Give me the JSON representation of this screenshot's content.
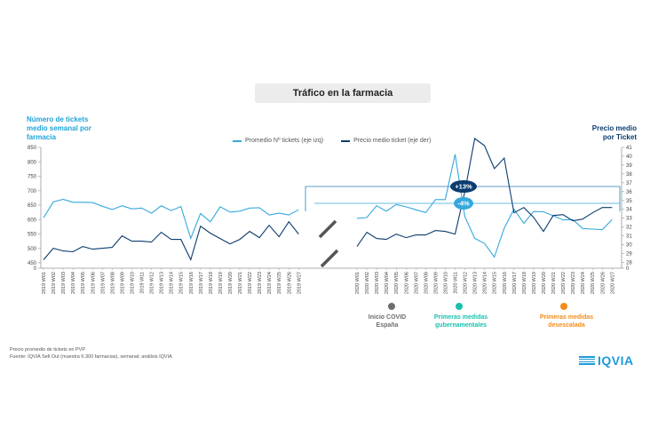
{
  "title": "Tráfico en la farmacia",
  "y_left_title": "Número de tickets medio semanal por farmacia",
  "y_right_title": "Precio medio por Ticket",
  "legend": [
    {
      "label": "Promedio Nº tickets (eje izq)",
      "color": "#35a8dc"
    },
    {
      "label": "Precio medio ticket (eje der)",
      "color": "#0b3c6f"
    }
  ],
  "colors": {
    "tickets": "#35a8dc",
    "price": "#0b3c6f",
    "covid": "#6d6d6d",
    "gov": "#19bfae",
    "descalada": "#f28c1b"
  },
  "events": [
    {
      "label": "Inicio COVID España",
      "color": "#6d6d6d"
    },
    {
      "label": "Primeras medidas gubernamentales",
      "color": "#19bfae"
    },
    {
      "label": "Primeras medidas desescalada",
      "color": "#f28c1b"
    }
  ],
  "footer": [
    "Precio promedio de tickets en PVP",
    "Fuente: IQVIA Sell Out (muestra 6.300 farmacias), semanal; análisis IQVIA"
  ],
  "logo": "IQVIA",
  "chart_data": {
    "type": "line",
    "x": [
      "2019 W01",
      "2019 W02",
      "2019 W03",
      "2019 W04",
      "2019 W05",
      "2019 W06",
      "2019 W07",
      "2019 W08",
      "2019 W09",
      "2019 W10",
      "2019 W11",
      "2019 W12",
      "2019 W13",
      "2019 W14",
      "2019 W15",
      "2019 W16",
      "2019 W17",
      "2019 W18",
      "2019 W19",
      "2019 W20",
      "2019 W21",
      "2019 W22",
      "2019 W23",
      "2019 W24",
      "2019 W25",
      "2019 W26",
      "2019 W27",
      "2020 W01",
      "2020 W02",
      "2020 W03",
      "2020 W04",
      "2020 W05",
      "2020 W06",
      "2020 W07",
      "2020 W08",
      "2020 W09",
      "2020 W10",
      "2020 W11",
      "2020 W12",
      "2020 W13",
      "2020 W14",
      "2020 W15",
      "2020 W16",
      "2020 W17",
      "2020 W18",
      "2020 W19",
      "2020 W20",
      "2020 W21",
      "2020 W22",
      "2020 W23",
      "2020 W24",
      "2020 W25",
      "2020 W26",
      "2020 W27"
    ],
    "series": [
      {
        "name": "Promedio Nº tickets (eje izq)",
        "axis": "left",
        "values": [
          606,
          661,
          670,
          660,
          660,
          659,
          646,
          635,
          648,
          637,
          640,
          622,
          648,
          631,
          645,
          535,
          621,
          592,
          644,
          626,
          629,
          640,
          641,
          616,
          622,
          616,
          634,
          604,
          607,
          648,
          629,
          652,
          644,
          634,
          624,
          669,
          669,
          826,
          610,
          535,
          517,
          470,
          570,
          636,
          587,
          628,
          627,
          613,
          599,
          600,
          569,
          567,
          565,
          600
        ]
      },
      {
        "name": "Precio medio ticket (eje der)",
        "axis": "right",
        "values": [
          28.3,
          29.6,
          29.3,
          29.2,
          29.8,
          29.5,
          29.6,
          29.7,
          31,
          30.4,
          30.4,
          30.3,
          31.4,
          30.6,
          30.6,
          28.3,
          32.1,
          31.3,
          30.7,
          30.1,
          30.6,
          31.5,
          30.8,
          32.2,
          30.9,
          32.6,
          31.2,
          29.8,
          31.4,
          30.7,
          30.6,
          31.2,
          30.8,
          31.1,
          31.1,
          31.6,
          31.5,
          31.2,
          36,
          42,
          41.2,
          38.6,
          39.8,
          33.6,
          34.2,
          33.1,
          31.5,
          33.3,
          33.4,
          32.7,
          32.9,
          33.6,
          34.2,
          34.2
        ]
      }
    ],
    "xlabel": "",
    "ylim_left": [
      0,
      850
    ],
    "yticks_left": [
      0,
      450,
      500,
      550,
      600,
      650,
      700,
      750,
      800,
      850
    ],
    "ylim_right": [
      0,
      41
    ],
    "yticks_right": [
      0,
      28,
      29,
      30,
      31,
      32,
      33,
      34,
      35,
      36,
      37,
      38,
      39,
      40,
      41
    ],
    "annotations": [
      "+13%",
      "-4%"
    ],
    "grid": false
  }
}
